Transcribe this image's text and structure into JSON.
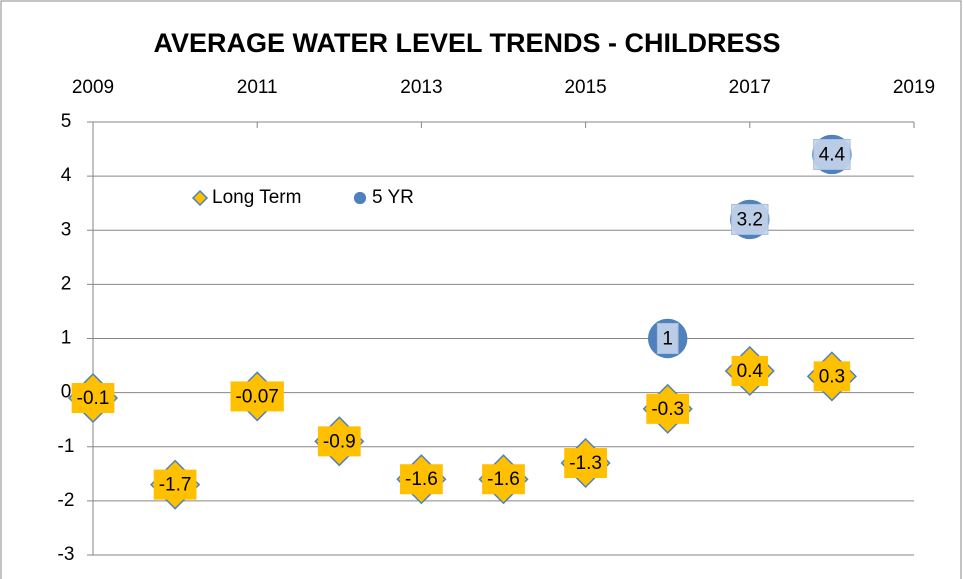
{
  "chart_data": {
    "type": "scatter",
    "title": "AVERAGE WATER LEVEL TRENDS - CHILDRESS",
    "series": [
      {
        "name": "Long Term",
        "color": "#FFC000",
        "edge": "#4F81BD",
        "marker": "diamond",
        "x": [
          2009,
          2010,
          2011,
          2012,
          2013,
          2014,
          2015,
          2016,
          2017,
          2018
        ],
        "values": [
          -0.1,
          -1.7,
          -0.07,
          -0.9,
          -1.6,
          -1.6,
          -1.3,
          -0.3,
          0.4,
          0.3
        ]
      },
      {
        "name": "5 YR",
        "color": "#4F81BD",
        "edge": "#4F81BD",
        "marker": "circle",
        "x": [
          2016,
          2017,
          2018
        ],
        "values": [
          1,
          3.2,
          4.4
        ]
      }
    ],
    "xlim": [
      2009,
      2019
    ],
    "xticks": [
      2009,
      2011,
      2013,
      2015,
      2017,
      2019
    ],
    "ylim": [
      -3,
      5
    ],
    "yticks": [
      -3,
      -2,
      -1,
      0,
      1,
      2,
      3,
      4,
      5
    ],
    "grid": true,
    "legend": "upper left"
  }
}
